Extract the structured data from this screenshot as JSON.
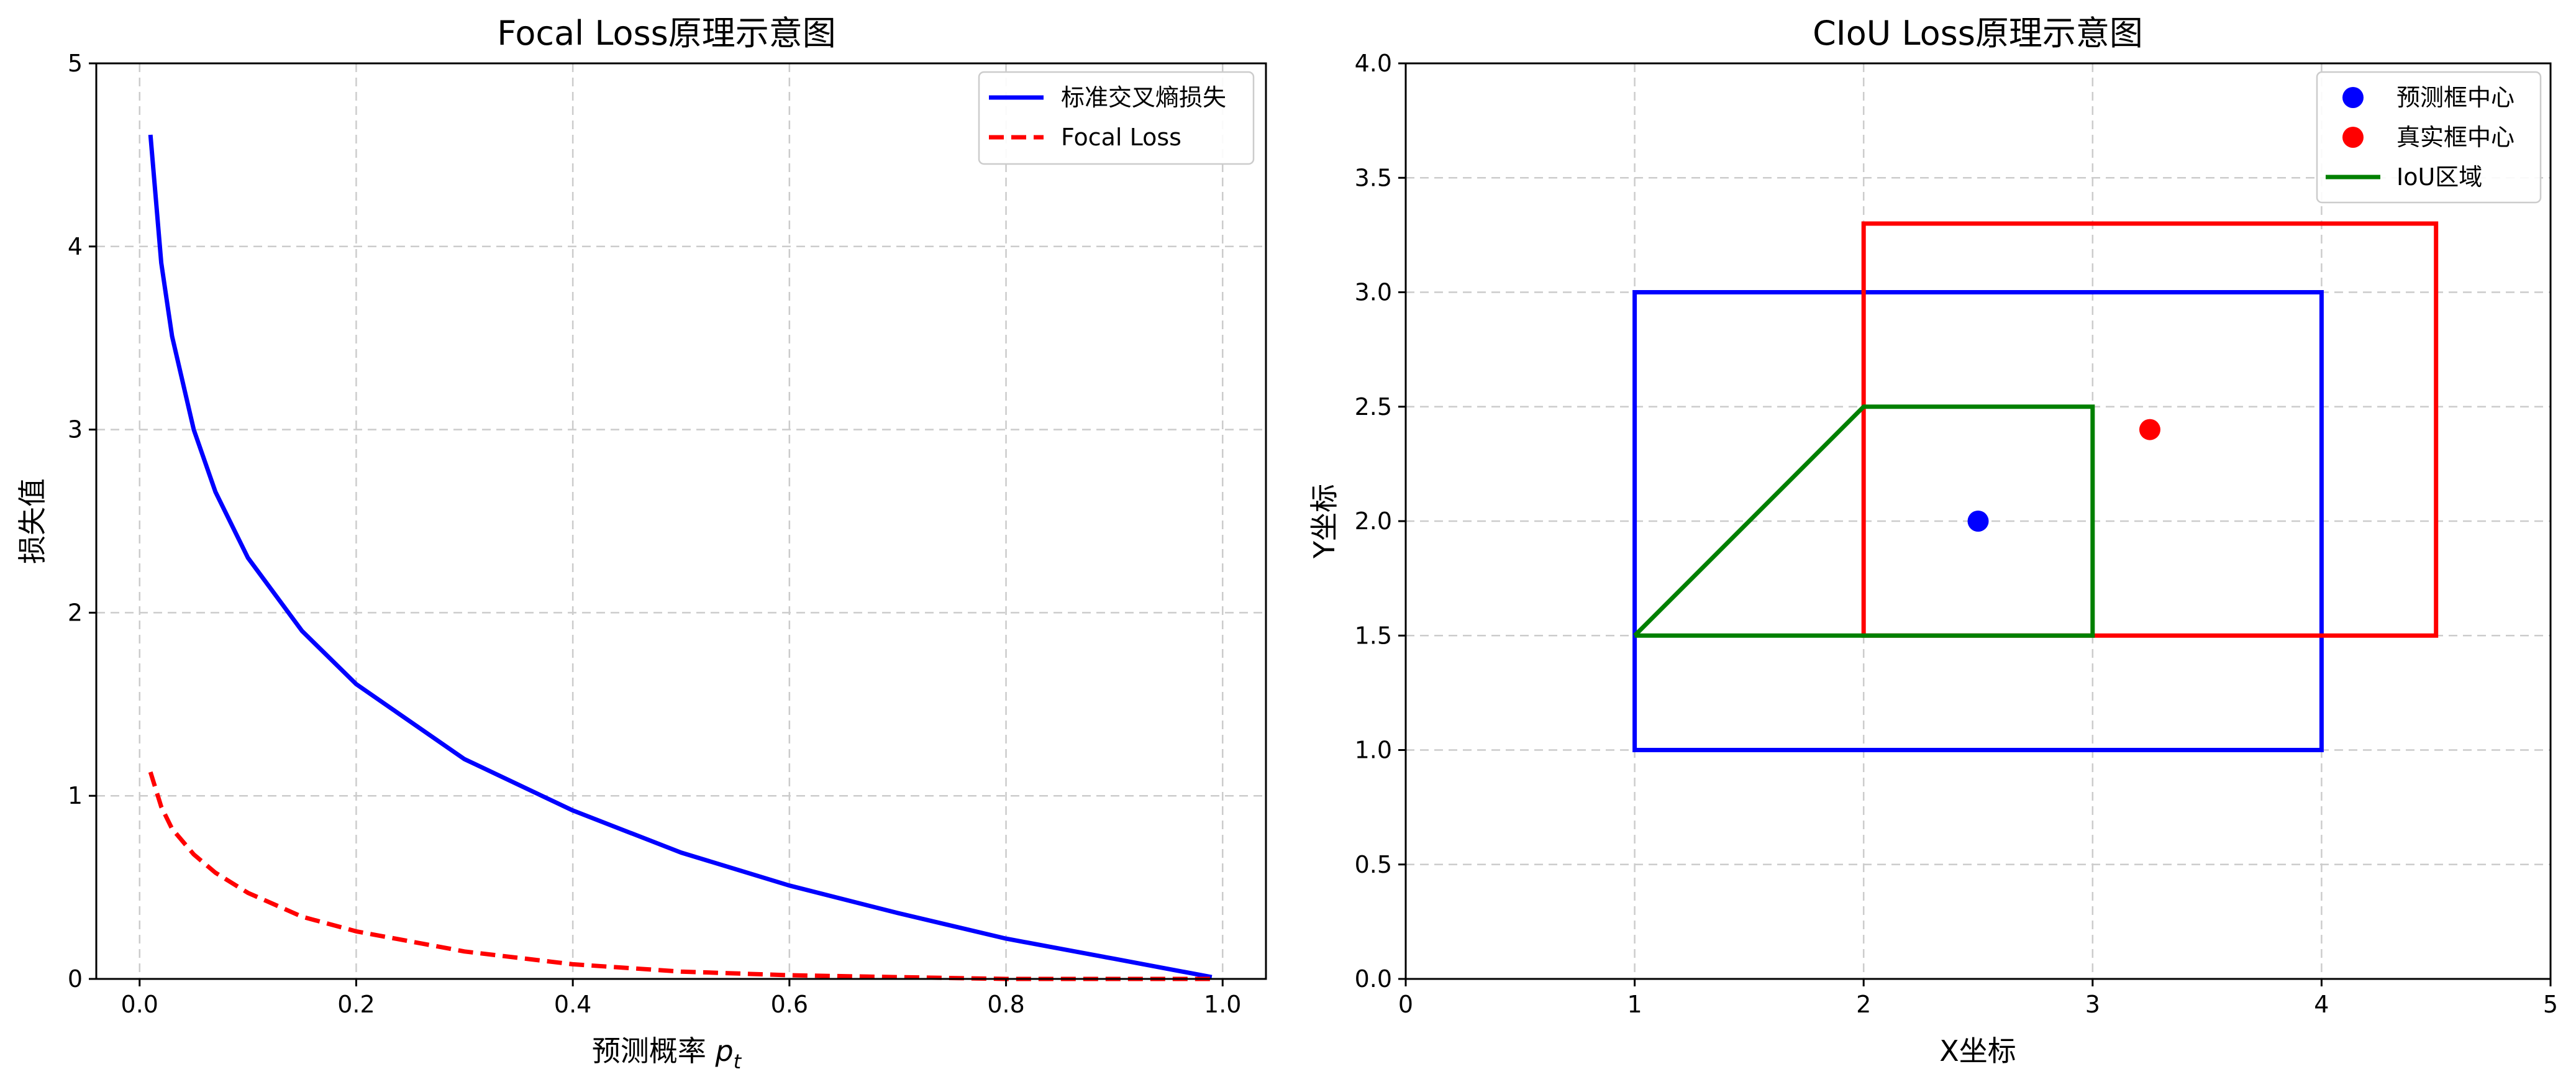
{
  "chart_data": [
    {
      "type": "line",
      "title": "Focal Loss原理示意图",
      "xlabel": "预测概率",
      "xlabel_symbol": "p",
      "xlabel_subscript": "t",
      "ylabel": "损失值",
      "xlim": [
        -0.04,
        1.04
      ],
      "ylim": [
        0,
        5
      ],
      "xticks": [
        "0.0",
        "0.2",
        "0.4",
        "0.6",
        "0.8",
        "1.0"
      ],
      "yticks": [
        "0",
        "1",
        "2",
        "3",
        "4",
        "5"
      ],
      "grid": true,
      "legend_position": "top-right",
      "series": [
        {
          "name": "标准交叉熵损失",
          "color": "#0000ff",
          "style": "solid",
          "x": [
            0.01,
            0.02,
            0.03,
            0.05,
            0.07,
            0.1,
            0.15,
            0.2,
            0.3,
            0.4,
            0.5,
            0.6,
            0.7,
            0.8,
            0.9,
            0.99
          ],
          "y": [
            4.61,
            3.91,
            3.51,
            3.0,
            2.66,
            2.3,
            1.9,
            1.61,
            1.2,
            0.92,
            0.69,
            0.51,
            0.36,
            0.22,
            0.11,
            0.01
          ]
        },
        {
          "name": "Focal Loss",
          "color": "#ff0000",
          "style": "dashed",
          "x": [
            0.01,
            0.02,
            0.03,
            0.05,
            0.07,
            0.1,
            0.15,
            0.2,
            0.3,
            0.4,
            0.5,
            0.6,
            0.7,
            0.8,
            0.9,
            0.99
          ],
          "y": [
            1.13,
            0.94,
            0.82,
            0.68,
            0.58,
            0.47,
            0.34,
            0.26,
            0.15,
            0.08,
            0.04,
            0.02,
            0.01,
            0.0,
            0.0,
            0.0
          ]
        }
      ]
    },
    {
      "type": "scatter",
      "title": "CIoU Loss原理示意图",
      "xlabel": "X坐标",
      "ylabel": "Y坐标",
      "xlim": [
        0,
        5
      ],
      "ylim": [
        0,
        4
      ],
      "xticks": [
        "0",
        "1",
        "2",
        "3",
        "4",
        "5"
      ],
      "yticks": [
        "0.0",
        "0.5",
        "1.0",
        "1.5",
        "2.0",
        "2.5",
        "3.0",
        "3.5",
        "4.0"
      ],
      "grid": true,
      "legend_position": "top-right",
      "legend": [
        {
          "label": "预测框中心",
          "kind": "marker",
          "color": "#0000ff"
        },
        {
          "label": "真实框中心",
          "kind": "marker",
          "color": "#ff0000"
        },
        {
          "label": "IoU区域",
          "kind": "line",
          "color": "#008000"
        }
      ],
      "boxes": [
        {
          "role": "predicted",
          "color": "#0000ff",
          "x1": 1,
          "y1": 1,
          "x2": 4,
          "y2": 3
        },
        {
          "role": "ground-truth",
          "color": "#ff0000",
          "x1": 2,
          "y1": 1.5,
          "x2": 4.5,
          "y2": 3.3
        }
      ],
      "iou_outline": {
        "color": "#008000",
        "points": [
          [
            1,
            1.5
          ],
          [
            3,
            1.5
          ],
          [
            3,
            2.5
          ],
          [
            2,
            2.5
          ],
          [
            1,
            1.5
          ]
        ]
      },
      "points": [
        {
          "role": "predicted-center",
          "color": "#0000ff",
          "x": 2.5,
          "y": 2.0
        },
        {
          "role": "ground-truth-center",
          "color": "#ff0000",
          "x": 3.25,
          "y": 2.4
        }
      ]
    }
  ]
}
